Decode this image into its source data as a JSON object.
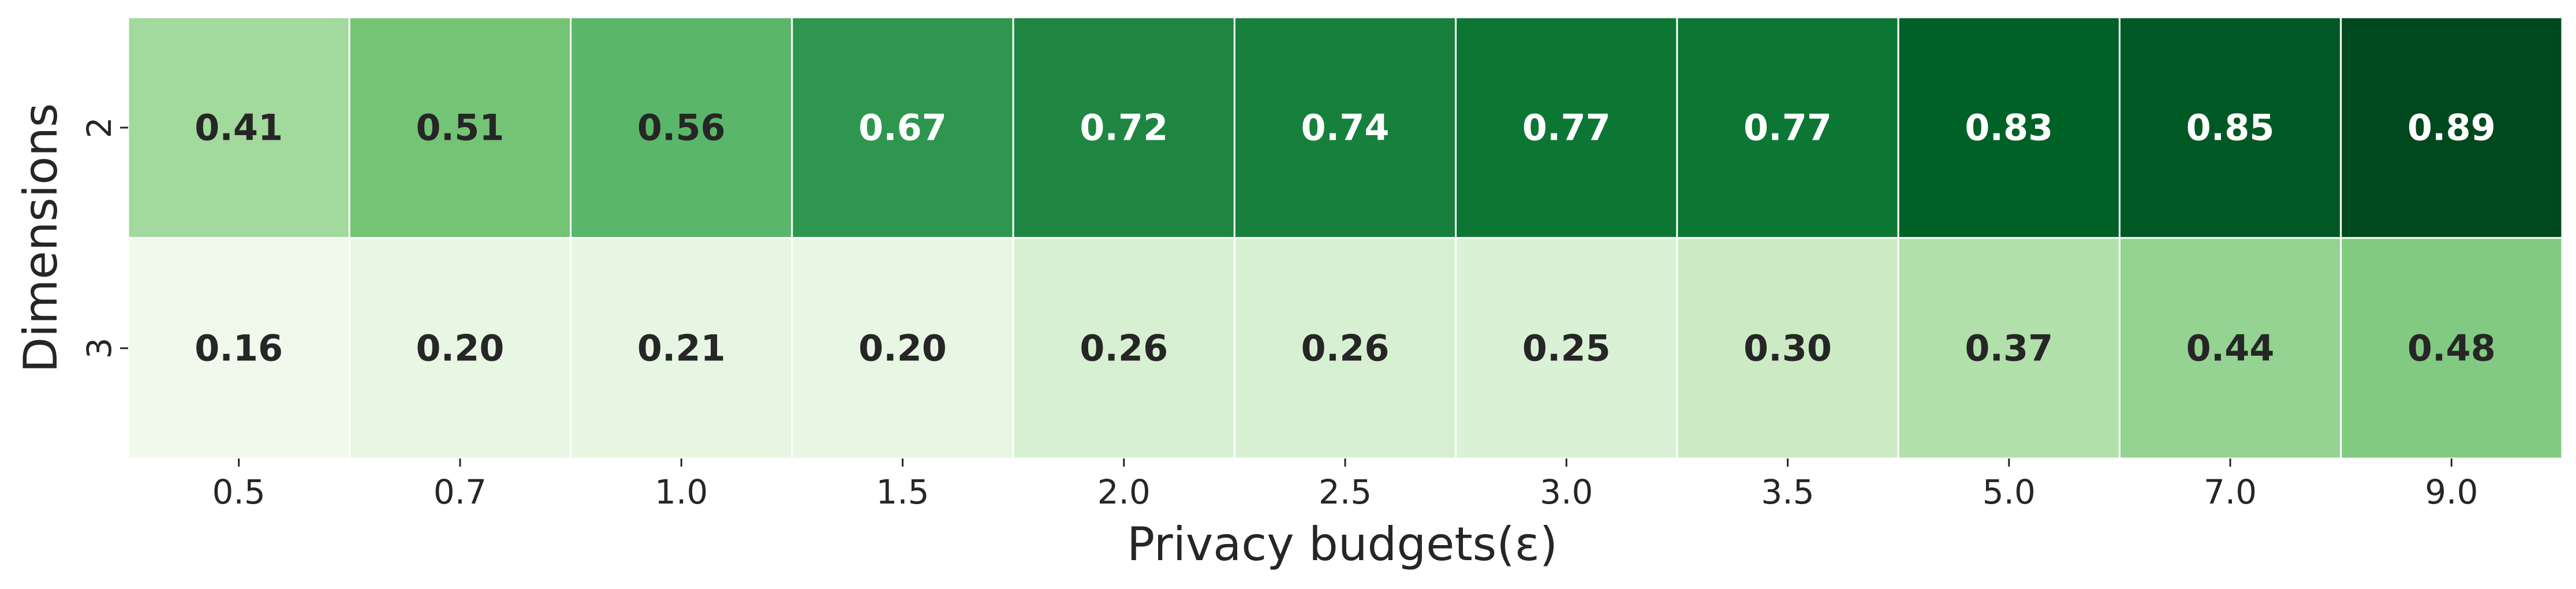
{
  "chart_data": {
    "type": "heatmap",
    "title": "",
    "xlabel": "Privacy budgets(ε)",
    "ylabel": "Dimensions",
    "x_categories": [
      "0.5",
      "0.7",
      "1.0",
      "1.5",
      "2.0",
      "2.5",
      "3.0",
      "3.5",
      "5.0",
      "7.0",
      "9.0"
    ],
    "y_categories": [
      "2",
      "3"
    ],
    "values": [
      [
        0.41,
        0.51,
        0.56,
        0.67,
        0.72,
        0.74,
        0.77,
        0.77,
        0.83,
        0.85,
        0.89
      ],
      [
        0.16,
        0.2,
        0.21,
        0.2,
        0.26,
        0.26,
        0.25,
        0.3,
        0.37,
        0.44,
        0.48
      ]
    ],
    "value_format": "0.00",
    "colormap": "Greens",
    "color_range": [
      0.12,
      0.9
    ],
    "cell_border_color": "#ffffff",
    "dark_text_color": "#262626",
    "light_text_color": "#ffffff",
    "colorbar": false,
    "grid": false
  }
}
